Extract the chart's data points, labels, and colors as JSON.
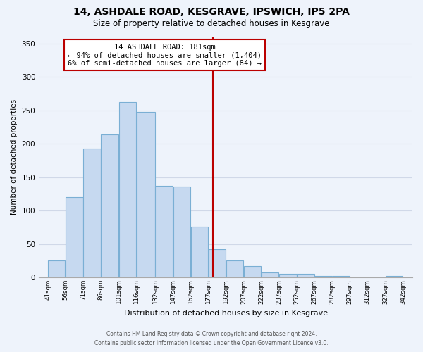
{
  "title": "14, ASHDALE ROAD, KESGRAVE, IPSWICH, IP5 2PA",
  "subtitle": "Size of property relative to detached houses in Kesgrave",
  "xlabel": "Distribution of detached houses by size in Kesgrave",
  "ylabel": "Number of detached properties",
  "bar_left_edges": [
    41,
    56,
    71,
    86,
    101,
    116,
    132,
    147,
    162,
    177,
    192,
    207,
    222,
    237,
    252,
    267,
    282,
    297,
    312,
    327
  ],
  "bar_widths": [
    15,
    15,
    15,
    15,
    15,
    16,
    15,
    15,
    15,
    15,
    15,
    15,
    15,
    15,
    15,
    15,
    15,
    15,
    15,
    15
  ],
  "bar_heights": [
    25,
    120,
    193,
    214,
    262,
    248,
    137,
    136,
    76,
    42,
    25,
    17,
    7,
    5,
    5,
    2,
    2,
    0,
    0,
    2
  ],
  "bar_color": "#c6d9f0",
  "bar_edge_color": "#7aafd4",
  "vline_x": 181,
  "vline_color": "#bb0000",
  "ylim": [
    0,
    360
  ],
  "yticks": [
    0,
    50,
    100,
    150,
    200,
    250,
    300,
    350
  ],
  "xtick_labels": [
    "41sqm",
    "56sqm",
    "71sqm",
    "86sqm",
    "101sqm",
    "116sqm",
    "132sqm",
    "147sqm",
    "162sqm",
    "177sqm",
    "192sqm",
    "207sqm",
    "222sqm",
    "237sqm",
    "252sqm",
    "267sqm",
    "282sqm",
    "297sqm",
    "312sqm",
    "327sqm",
    "342sqm"
  ],
  "xtick_positions": [
    41,
    56,
    71,
    86,
    101,
    116,
    132,
    147,
    162,
    177,
    192,
    207,
    222,
    237,
    252,
    267,
    282,
    297,
    312,
    327,
    342
  ],
  "annotation_title": "14 ASHDALE ROAD: 181sqm",
  "annotation_line1": "← 94% of detached houses are smaller (1,404)",
  "annotation_line2": "6% of semi-detached houses are larger (84) →",
  "footer_line1": "Contains HM Land Registry data © Crown copyright and database right 2024.",
  "footer_line2": "Contains public sector information licensed under the Open Government Licence v3.0.",
  "bg_color": "#eef3fb",
  "grid_color": "#d0d8e8"
}
